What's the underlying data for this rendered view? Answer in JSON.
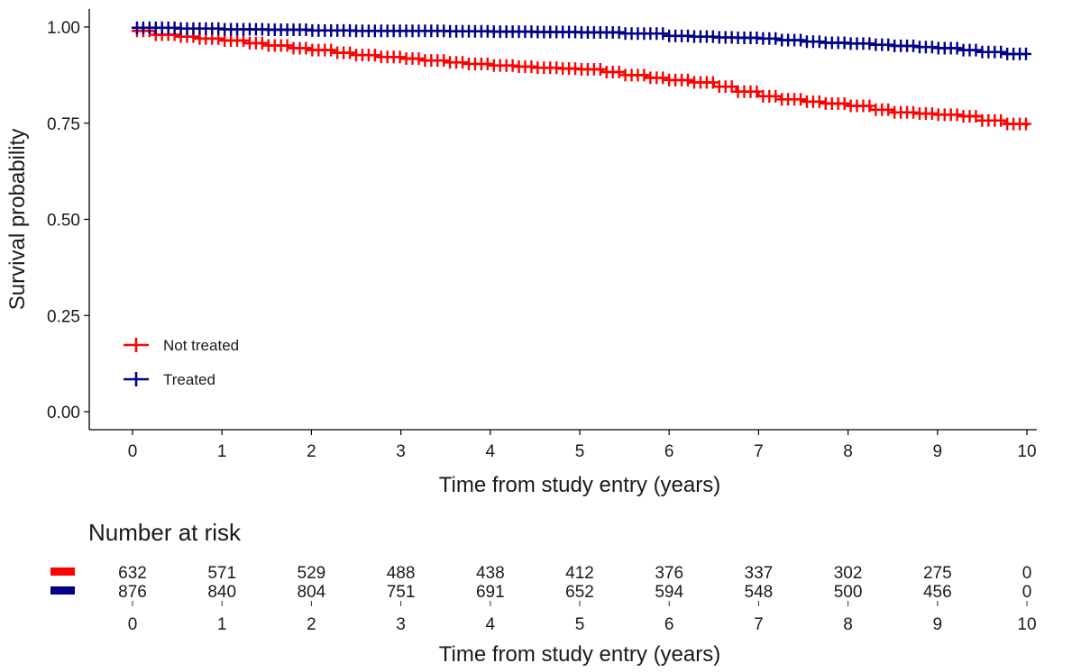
{
  "chart_data": {
    "type": "line",
    "title": "",
    "xlabel": "Time from study entry (years)",
    "ylabel": "Survival probability",
    "xlim": [
      0,
      10
    ],
    "ylim": [
      0,
      1
    ],
    "x_ticks": [
      0,
      1,
      2,
      3,
      4,
      5,
      6,
      7,
      8,
      9,
      10
    ],
    "y_ticks": [
      "0.00",
      "0.25",
      "0.50",
      "0.75",
      "1.00"
    ],
    "grid": false,
    "legend_position": "bottom-left",
    "series": [
      {
        "name": "Not treated",
        "color": "#ff0000",
        "x": [
          0,
          0.25,
          0.5,
          0.75,
          1,
          1.25,
          1.5,
          1.75,
          2,
          2.25,
          2.5,
          2.75,
          3,
          3.25,
          3.5,
          3.75,
          4,
          4.25,
          4.5,
          4.75,
          5,
          5.25,
          5.5,
          5.75,
          6,
          6.25,
          6.5,
          6.75,
          7,
          7.25,
          7.5,
          7.75,
          8,
          8.25,
          8.5,
          8.75,
          9,
          9.25,
          9.5,
          9.75,
          10
        ],
        "y": [
          0.99,
          0.98,
          0.975,
          0.97,
          0.965,
          0.958,
          0.952,
          0.945,
          0.94,
          0.933,
          0.927,
          0.922,
          0.918,
          0.913,
          0.908,
          0.904,
          0.9,
          0.897,
          0.894,
          0.892,
          0.89,
          0.883,
          0.875,
          0.868,
          0.862,
          0.856,
          0.845,
          0.832,
          0.82,
          0.812,
          0.806,
          0.801,
          0.795,
          0.785,
          0.778,
          0.775,
          0.772,
          0.768,
          0.757,
          0.748,
          0.742
        ]
      },
      {
        "name": "Treated",
        "color": "#00008b",
        "x": [
          0,
          0.5,
          1,
          1.5,
          2,
          2.5,
          3,
          3.5,
          4,
          4.5,
          5,
          5.5,
          6,
          6.25,
          6.5,
          6.75,
          7,
          7.25,
          7.5,
          7.75,
          8,
          8.25,
          8.5,
          8.75,
          9,
          9.25,
          9.5,
          9.75,
          10
        ],
        "y": [
          0.998,
          0.996,
          0.994,
          0.993,
          0.991,
          0.99,
          0.99,
          0.989,
          0.988,
          0.987,
          0.986,
          0.983,
          0.977,
          0.975,
          0.973,
          0.972,
          0.97,
          0.966,
          0.962,
          0.959,
          0.957,
          0.954,
          0.951,
          0.948,
          0.945,
          0.94,
          0.935,
          0.93,
          0.928
        ]
      }
    ],
    "risk_table": {
      "title": "Number at risk",
      "xlabel": "Time from study entry (years)",
      "x": [
        0,
        1,
        2,
        3,
        4,
        5,
        6,
        7,
        8,
        9,
        10
      ],
      "rows": [
        {
          "group": "Not treated",
          "color": "#ff0000",
          "values": [
            "632",
            "571",
            "529",
            "488",
            "438",
            "412",
            "376",
            "337",
            "302",
            "275",
            "0"
          ]
        },
        {
          "group": "Treated",
          "color": "#00008b",
          "values": [
            "876",
            "840",
            "804",
            "751",
            "691",
            "652",
            "594",
            "548",
            "500",
            "456",
            "0"
          ]
        }
      ]
    }
  }
}
